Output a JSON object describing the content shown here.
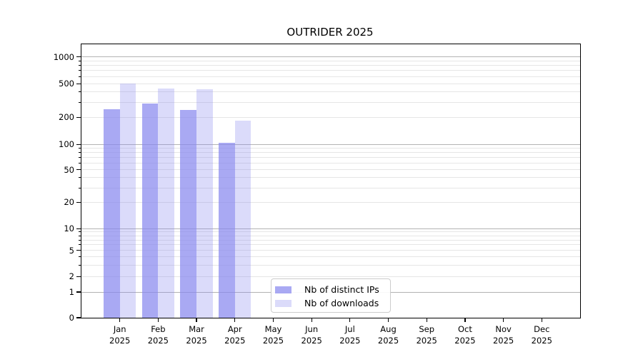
{
  "chart_data": {
    "type": "bar",
    "title": "OUTRIDER 2025",
    "categories": [
      "Jan",
      "Feb",
      "Mar",
      "Apr",
      "May",
      "Jun",
      "Jul",
      "Aug",
      "Sep",
      "Oct",
      "Nov",
      "Dec"
    ],
    "x_year_label": "2025",
    "series": [
      {
        "name": "Nb of distinct IPs",
        "color": "rgba(136,136,238,0.72)",
        "values": [
          250,
          290,
          245,
          104,
          null,
          null,
          null,
          null,
          null,
          null,
          null,
          null
        ]
      },
      {
        "name": "Nb of downloads",
        "color": "rgba(136,136,238,0.30)",
        "values": [
          500,
          440,
          430,
          185,
          null,
          null,
          null,
          null,
          null,
          null,
          null,
          null
        ]
      }
    ],
    "y_axis": {
      "scale": "symlog-like",
      "ylim": [
        0,
        1300
      ],
      "labeled_ticks": [
        0,
        1,
        2,
        5,
        10,
        20,
        50,
        100,
        200,
        500,
        1000
      ],
      "major_ticks": [
        1,
        10,
        100,
        1000
      ],
      "minor_unlabeled_ticks": [
        3,
        4,
        6,
        7,
        8,
        9,
        30,
        40,
        60,
        70,
        80,
        90,
        300,
        400,
        600,
        700,
        800,
        900
      ],
      "scale_anchors": [
        [
          0,
          1.0
        ],
        [
          1,
          0.9062
        ],
        [
          2,
          0.8498
        ],
        [
          5,
          0.7543
        ],
        [
          10,
          0.6742
        ],
        [
          20,
          0.5777
        ],
        [
          50,
          0.4588
        ],
        [
          100,
          0.3658
        ],
        [
          200,
          0.2675
        ],
        [
          500,
          0.1442
        ],
        [
          1000,
          0.0459
        ]
      ]
    },
    "grid": "both",
    "legend": {
      "position": "lower-center",
      "entries": [
        "Nb of distinct IPs",
        "Nb of downloads"
      ]
    },
    "colors": {
      "bar_base": "#8888ee",
      "major_grid": "#b3b3b3",
      "minor_grid": "#e6e6e6",
      "axis": "#000000",
      "background": "#ffffff"
    }
  }
}
